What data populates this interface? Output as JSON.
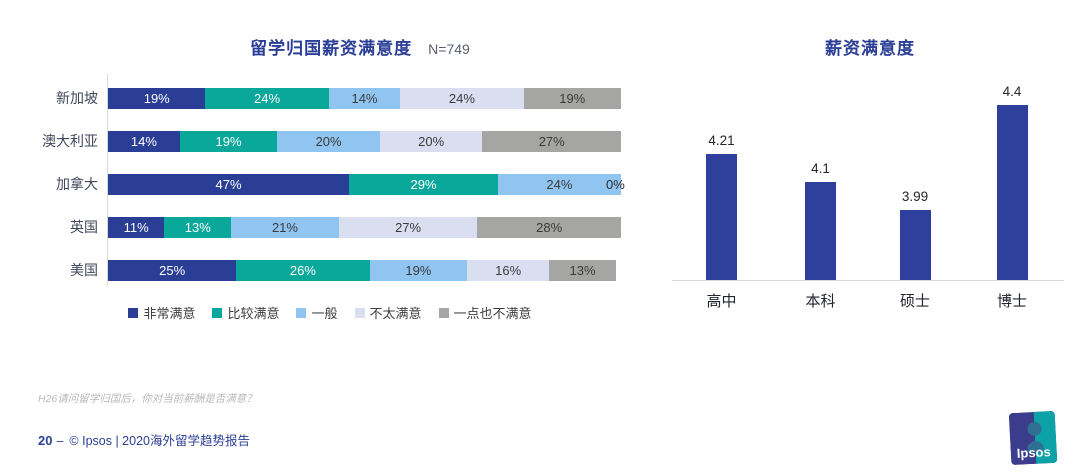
{
  "footnote": "H26请问留学归国后，你对当前薪酬是否满意？",
  "footer": {
    "page_number": "20",
    "separator": "–",
    "copyright": "© Ipsos | 2020海外留学趋势报告"
  },
  "logo": {
    "text": "Ipsos",
    "left_color": "#3C3C8C",
    "right_color": "#0CA2A8"
  },
  "chart_data": [
    {
      "type": "bar",
      "orientation": "horizontal",
      "stacked": true,
      "title": "留学归国薪资满意度",
      "sample_label": "N=749",
      "categories": [
        "新加坡",
        "澳大利亚",
        "加拿大",
        "英国",
        "美国"
      ],
      "series": [
        {
          "name": "非常满意",
          "color": "#2B3E96",
          "values": [
            19,
            14,
            47,
            11,
            25
          ]
        },
        {
          "name": "比较满意",
          "color": "#0AA79B",
          "values": [
            24,
            19,
            29,
            13,
            26
          ]
        },
        {
          "name": "一般",
          "color": "#90C5F1",
          "values": [
            14,
            20,
            24,
            21,
            19
          ]
        },
        {
          "name": "不太满意",
          "color": "#D9DFF1",
          "values": [
            24,
            20,
            0,
            27,
            16
          ]
        },
        {
          "name": "一点也不满意",
          "color": "#A5A5A3",
          "values": [
            19,
            27,
            0,
            28,
            13
          ]
        }
      ],
      "value_format": "percent",
      "xlim": [
        0,
        100
      ],
      "legend_position": "bottom",
      "grid": false
    },
    {
      "type": "bar",
      "orientation": "vertical",
      "title": "薪资满意度",
      "categories": [
        "高中",
        "本科",
        "硕士",
        "博士"
      ],
      "values": [
        4.21,
        4.1,
        3.99,
        4.4
      ],
      "labels": [
        "4.21",
        "4.1",
        "3.99",
        "4.4"
      ],
      "bar_color": "#2E3F9C",
      "ylim": [
        3.72,
        4.41
      ],
      "grid": false,
      "legend_position": "none"
    }
  ]
}
